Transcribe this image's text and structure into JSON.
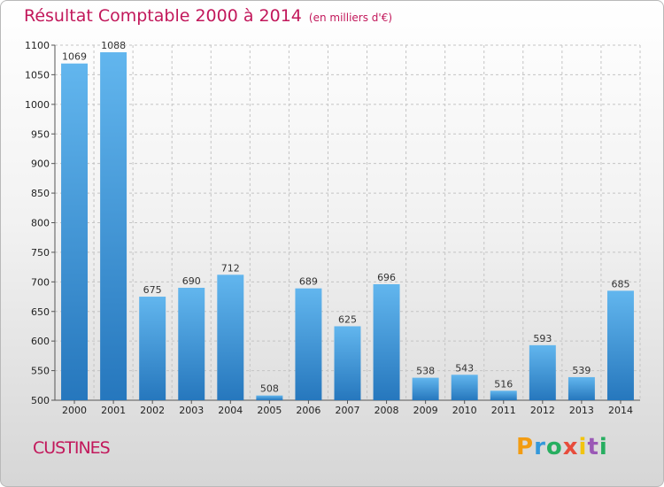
{
  "header": {
    "title": "Résultat Comptable 2000 à 2014",
    "subtitle": "(en milliers d'€)"
  },
  "footer": {
    "place": "CUSTINES",
    "logo": "Proxiti"
  },
  "colors": {
    "bar_light": "#5fb2ea",
    "bar_dark": "#2a7bc0",
    "title": "#c2185b"
  },
  "chart_data": {
    "type": "bar",
    "title": "Résultat Comptable 2000 à 2014",
    "subtitle": "(en milliers d'€)",
    "categories": [
      "2000",
      "2001",
      "2002",
      "2003",
      "2004",
      "2005",
      "2006",
      "2007",
      "2008",
      "2009",
      "2010",
      "2011",
      "2012",
      "2013",
      "2014"
    ],
    "values": [
      1069,
      1088,
      675,
      690,
      712,
      508,
      689,
      625,
      696,
      538,
      543,
      516,
      593,
      539,
      685
    ],
    "ylim": [
      500,
      1100
    ],
    "yticks": [
      500,
      550,
      600,
      650,
      700,
      750,
      800,
      850,
      900,
      950,
      1000,
      1050,
      1100
    ],
    "grid": true,
    "data_labels": true
  }
}
